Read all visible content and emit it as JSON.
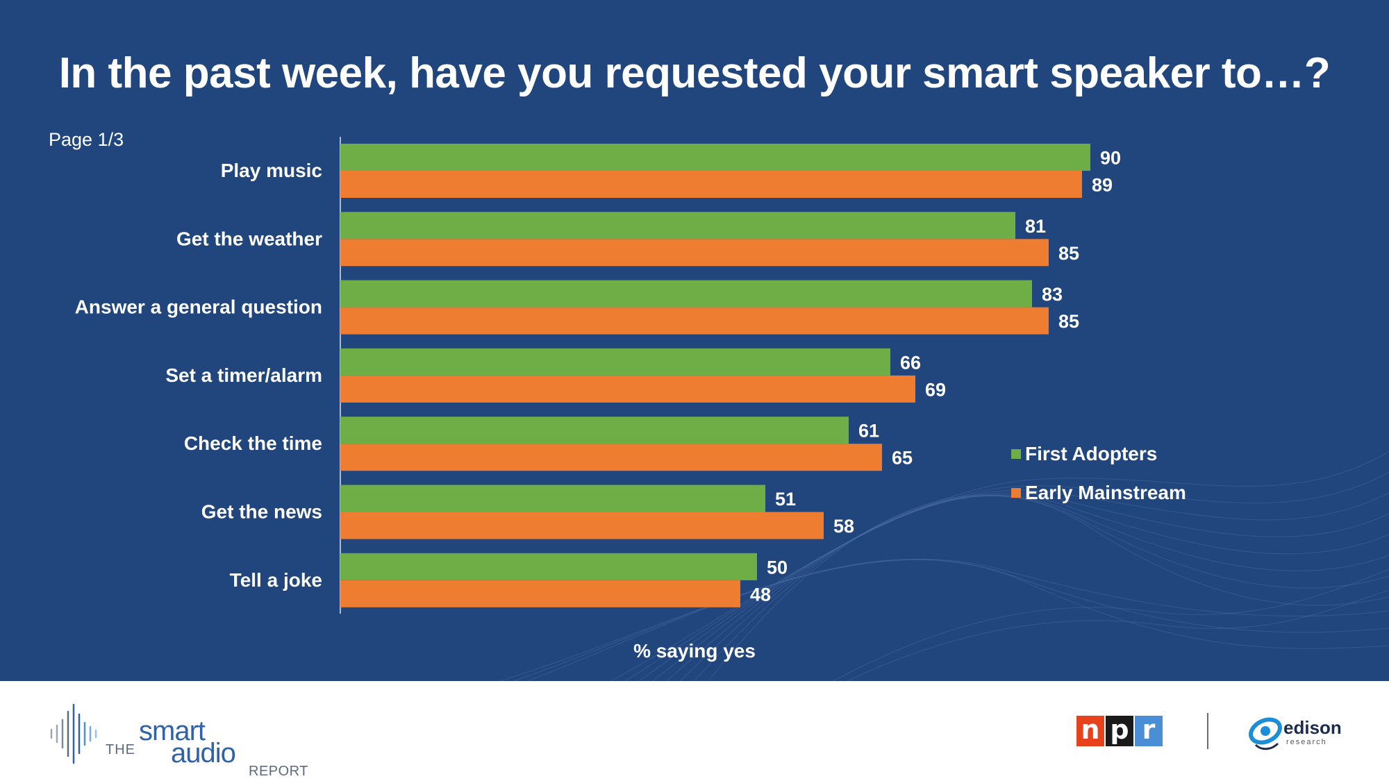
{
  "title": "In the past week, have you requested your smart speaker to…?",
  "page_label": "Page 1/3",
  "colors": {
    "background": "#21467d",
    "first_adopters": "#6fad47",
    "early_mainstream": "#ee7d31",
    "text": "#ffffff"
  },
  "chart_data": {
    "type": "bar",
    "orientation": "horizontal",
    "title": "In the past week, have you requested your smart speaker to…?",
    "categories": [
      "Play music",
      "Get the weather",
      "Answer a general question",
      "Set a timer/alarm",
      "Check the time",
      "Get the news",
      "Tell a joke"
    ],
    "series": [
      {
        "name": "First Adopters",
        "values": [
          90,
          81,
          83,
          66,
          61,
          51,
          50
        ]
      },
      {
        "name": "Early Mainstream",
        "values": [
          89,
          85,
          85,
          69,
          65,
          58,
          48
        ]
      }
    ],
    "xlabel": "% saying yes",
    "ylabel": "",
    "xlim": [
      0,
      100
    ],
    "grid": false,
    "legend_position": "right"
  },
  "legend": {
    "first_adopters": "First Adopters",
    "early_mainstream": "Early Mainstream"
  },
  "footer": {
    "sar_the": "THE",
    "sar_smart": "smart",
    "sar_audio": "audio",
    "sar_report": "REPORT",
    "npr_letters": [
      "n",
      "p",
      "r"
    ],
    "npr_colors": [
      "#e8421d",
      "#1a1a1a",
      "#4a8fd6"
    ],
    "edison_word": "edison",
    "edison_sub": "research"
  }
}
